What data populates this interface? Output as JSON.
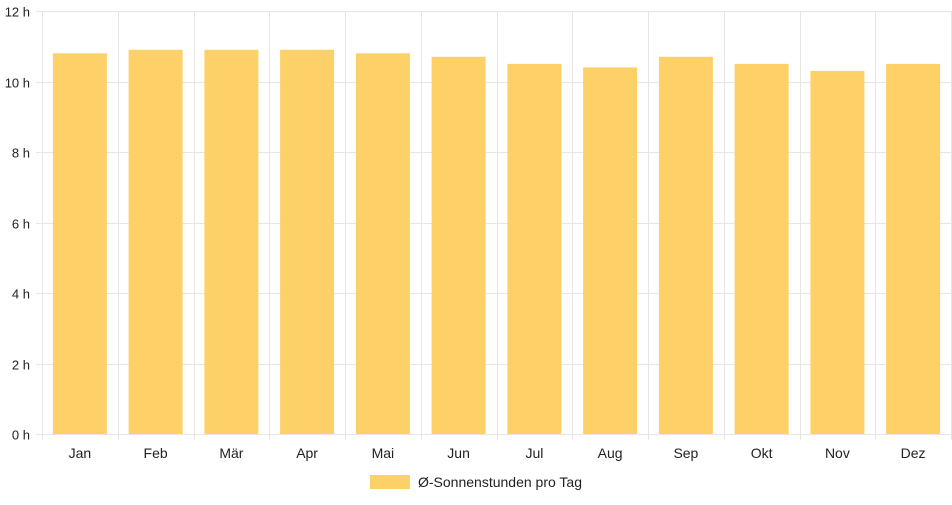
{
  "chart_data": {
    "type": "bar",
    "categories": [
      "Jan",
      "Feb",
      "Mär",
      "Apr",
      "Mai",
      "Jun",
      "Jul",
      "Aug",
      "Sep",
      "Okt",
      "Nov",
      "Dez"
    ],
    "series": [
      {
        "name": "Ø-Sonnenstunden pro Tag",
        "values": [
          10.8,
          10.9,
          10.9,
          10.9,
          10.8,
          10.7,
          10.5,
          10.4,
          10.7,
          10.5,
          10.3,
          10.5
        ],
        "color": "#fdd068"
      }
    ],
    "yticks": [
      "0 h",
      "2 h",
      "4 h",
      "6 h",
      "8 h",
      "10 h",
      "12 h"
    ],
    "ylim": [
      0,
      12
    ],
    "grid": true,
    "legend_position": "bottom"
  },
  "colors": {
    "bar": "#fdd068",
    "grid": "#e6e6e6",
    "axis": "#cccccc"
  }
}
